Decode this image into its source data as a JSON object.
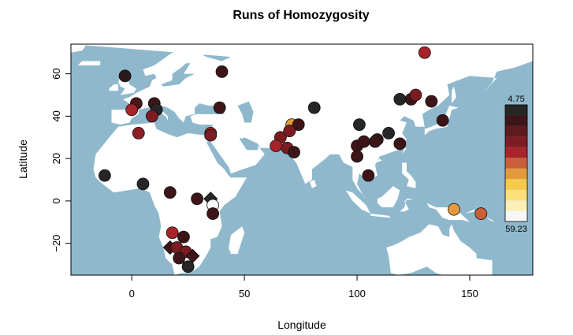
{
  "chart_data": {
    "type": "scatter",
    "title": "Runs of Homozygosity",
    "xlabel": "Longitude",
    "ylabel": "Latitude",
    "xlim": [
      -27,
      178
    ],
    "ylim": [
      -35,
      74
    ],
    "xticks": [
      0,
      50,
      100,
      150
    ],
    "yticks": [
      -20,
      0,
      20,
      40,
      60
    ],
    "xtick_labels": [
      "0",
      "50",
      "100",
      "150"
    ],
    "ytick_labels": [
      "−20",
      "0",
      "20",
      "40",
      "60"
    ],
    "grid": false,
    "legend": {
      "placement": "right",
      "max_label": "4.75",
      "min_label": "59.23",
      "colors": [
        "#262626",
        "#3d1518",
        "#5e1a1f",
        "#7c1c22",
        "#a8242a",
        "#c95f3a",
        "#e49a3c",
        "#f5c94a",
        "#fbe07a",
        "#fcefb5",
        "#f7f7f7"
      ]
    },
    "map": {
      "ocean_color": "#8fb8cc",
      "land_color": "#ffffff"
    },
    "points": [
      {
        "lon": -3,
        "lat": 59,
        "color": "#2a1a1d",
        "shape": "circle"
      },
      {
        "lon": 2,
        "lat": 46,
        "color": "#4b171b",
        "shape": "circle"
      },
      {
        "lon": 0,
        "lat": 43,
        "color": "#a8242a",
        "shape": "circle"
      },
      {
        "lon": 10,
        "lat": 46,
        "color": "#3d1518",
        "shape": "circle"
      },
      {
        "lon": 11,
        "lat": 43,
        "color": "#262626",
        "shape": "circle"
      },
      {
        "lon": 9,
        "lat": 40,
        "color": "#7c1c22",
        "shape": "circle"
      },
      {
        "lon": 3,
        "lat": 32,
        "color": "#8c1f25",
        "shape": "circle"
      },
      {
        "lon": 40,
        "lat": 61,
        "color": "#3d1518",
        "shape": "circle"
      },
      {
        "lon": 39,
        "lat": 44,
        "color": "#3d1518",
        "shape": "circle"
      },
      {
        "lon": 35,
        "lat": 32,
        "color": "#a8242a",
        "shape": "circle"
      },
      {
        "lon": 35,
        "lat": 31,
        "color": "#7c1c22",
        "shape": "circle"
      },
      {
        "lon": -12,
        "lat": 12,
        "color": "#262626",
        "shape": "circle"
      },
      {
        "lon": 5,
        "lat": 8,
        "color": "#262626",
        "shape": "circle"
      },
      {
        "lon": 17,
        "lat": 4,
        "color": "#3d1518",
        "shape": "circle"
      },
      {
        "lon": 29,
        "lat": 1,
        "color": "#3d1518",
        "shape": "circle"
      },
      {
        "lon": 35,
        "lat": 1,
        "color": "#262626",
        "shape": "diamond"
      },
      {
        "lon": 36,
        "lat": -2,
        "color": "#f7f7f7",
        "shape": "circle"
      },
      {
        "lon": 36,
        "lat": -6,
        "color": "#3d1518",
        "shape": "circle"
      },
      {
        "lon": 18,
        "lat": -15,
        "color": "#a8242a",
        "shape": "circle"
      },
      {
        "lon": 23,
        "lat": -17,
        "color": "#3d1518",
        "shape": "circle"
      },
      {
        "lon": 17,
        "lat": -22,
        "color": "#3d1518",
        "shape": "diamond"
      },
      {
        "lon": 20,
        "lat": -22,
        "color": "#7c1c22",
        "shape": "circle"
      },
      {
        "lon": 24,
        "lat": -24,
        "color": "#7c1c22",
        "shape": "circle"
      },
      {
        "lon": 27,
        "lat": -26,
        "color": "#3d1518",
        "shape": "diamond"
      },
      {
        "lon": 21,
        "lat": -27,
        "color": "#3d1518",
        "shape": "circle"
      },
      {
        "lon": 25,
        "lat": -31,
        "color": "#262626",
        "shape": "circle"
      },
      {
        "lon": 81,
        "lat": 44,
        "color": "#262626",
        "shape": "circle"
      },
      {
        "lon": 71,
        "lat": 36,
        "color": "#e49a3c",
        "shape": "circle"
      },
      {
        "lon": 74,
        "lat": 36,
        "color": "#3d1518",
        "shape": "circle"
      },
      {
        "lon": 66,
        "lat": 30,
        "color": "#7c1c22",
        "shape": "circle"
      },
      {
        "lon": 70,
        "lat": 33,
        "color": "#7c1c22",
        "shape": "circle"
      },
      {
        "lon": 64,
        "lat": 26,
        "color": "#a8242a",
        "shape": "circle"
      },
      {
        "lon": 69,
        "lat": 25,
        "color": "#7c1c22",
        "shape": "circle"
      },
      {
        "lon": 72,
        "lat": 23,
        "color": "#3d1518",
        "shape": "circle"
      },
      {
        "lon": 101,
        "lat": 36,
        "color": "#262626",
        "shape": "circle"
      },
      {
        "lon": 114,
        "lat": 32,
        "color": "#262626",
        "shape": "circle"
      },
      {
        "lon": 100,
        "lat": 26,
        "color": "#3d1518",
        "shape": "circle"
      },
      {
        "lon": 103,
        "lat": 28,
        "color": "#3d1518",
        "shape": "circle"
      },
      {
        "lon": 100,
        "lat": 21,
        "color": "#3d1518",
        "shape": "circle"
      },
      {
        "lon": 109,
        "lat": 29,
        "color": "#3d1518",
        "shape": "circle"
      },
      {
        "lon": 108,
        "lat": 28,
        "color": "#3d1518",
        "shape": "circle"
      },
      {
        "lon": 119,
        "lat": 27,
        "color": "#3d1518",
        "shape": "circle"
      },
      {
        "lon": 105,
        "lat": 12,
        "color": "#3d1518",
        "shape": "circle"
      },
      {
        "lon": 119,
        "lat": 48,
        "color": "#262626",
        "shape": "circle"
      },
      {
        "lon": 124,
        "lat": 48,
        "color": "#3d1518",
        "shape": "circle"
      },
      {
        "lon": 126,
        "lat": 50,
        "color": "#7c1c22",
        "shape": "circle"
      },
      {
        "lon": 133,
        "lat": 47,
        "color": "#3d1518",
        "shape": "circle"
      },
      {
        "lon": 138,
        "lat": 38,
        "color": "#3d1518",
        "shape": "circle"
      },
      {
        "lon": 130,
        "lat": 70,
        "color": "#a8242a",
        "shape": "circle"
      },
      {
        "lon": 143,
        "lat": -4,
        "color": "#e49a3c",
        "shape": "circle"
      },
      {
        "lon": 155,
        "lat": -6,
        "color": "#c95f3a",
        "shape": "circle"
      }
    ]
  }
}
